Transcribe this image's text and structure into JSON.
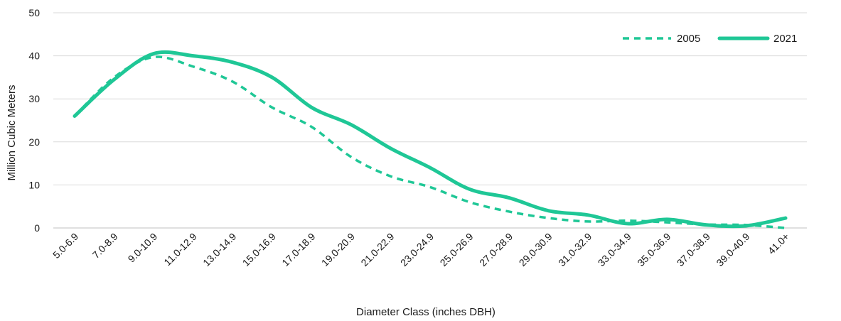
{
  "chart_data": {
    "type": "line",
    "title": "",
    "xlabel": "Diameter Class (inches DBH)",
    "ylabel": "Million Cubic Meters",
    "ylim": [
      0,
      50
    ],
    "yticks": [
      0,
      10,
      20,
      30,
      40,
      50
    ],
    "grid": true,
    "legend_position": "top-right",
    "categories": [
      "5.0-6.9",
      "7.0-8.9",
      "9.0-10.9",
      "11.0-12.9",
      "13.0-14.9",
      "15.0-16.9",
      "17.0-18.9",
      "19.0-20.9",
      "21.0-22.9",
      "23.0-24.9",
      "25.0-26.9",
      "27.0-28.9",
      "29.0-30.9",
      "31.0-32.9",
      "33.0-34.9",
      "35.0-36.9",
      "37.0-38.9",
      "39.0-40.9",
      "41.0+"
    ],
    "series": [
      {
        "name": "2005",
        "style": "dashed",
        "color": "#1fc796",
        "values": [
          26,
          35,
          39.7,
          37.5,
          34,
          28,
          23.5,
          16.5,
          12,
          9.5,
          6,
          3.8,
          2.3,
          1.5,
          1.7,
          1.3,
          0.8,
          0.7,
          0
        ]
      },
      {
        "name": "2021",
        "style": "solid",
        "color": "#1fc796",
        "values": [
          26,
          34.5,
          40.5,
          40,
          38.5,
          35,
          28,
          24,
          18.5,
          14,
          9,
          7,
          4,
          3,
          1,
          2,
          0.7,
          0.5,
          2.3
        ]
      }
    ]
  }
}
